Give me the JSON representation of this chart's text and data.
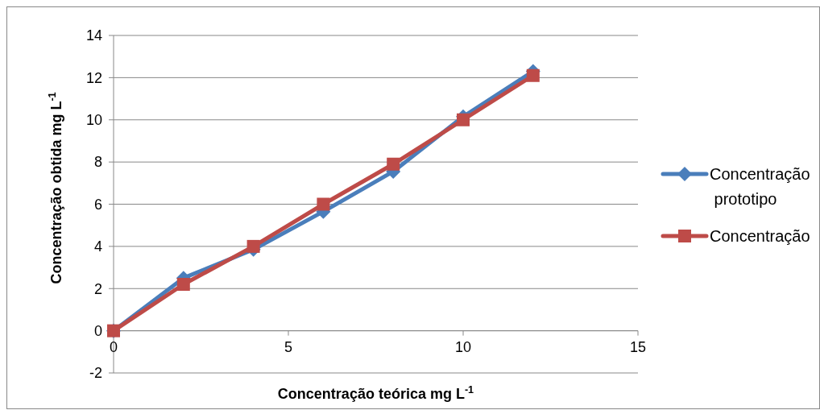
{
  "chart_data": {
    "type": "line",
    "xlabel": "Concentração teórica mg L$^{-1}$",
    "ylabel": "Concentração obtida mg L$^{-1}$",
    "xlim": [
      0,
      15
    ],
    "xticks": [
      0,
      5,
      10,
      15
    ],
    "ylim": [
      -2,
      14
    ],
    "yticks": [
      -2,
      0,
      2,
      4,
      6,
      8,
      10,
      12,
      14
    ],
    "grid": "y",
    "legend": "right",
    "series": [
      {
        "name": "Concentração prototipo",
        "color": "#4a7ebb",
        "marker": "diamond",
        "x": [
          0,
          2,
          4,
          6,
          8,
          10,
          12
        ],
        "values": [
          0,
          2.5,
          3.85,
          5.65,
          7.55,
          10.15,
          12.3
        ]
      },
      {
        "name": "Concentração",
        "color": "#be4b48",
        "marker": "square",
        "x": [
          0,
          2,
          4,
          6,
          8,
          10,
          12
        ],
        "values": [
          0,
          2.2,
          4.0,
          6.0,
          7.9,
          10.0,
          12.1
        ]
      }
    ]
  }
}
